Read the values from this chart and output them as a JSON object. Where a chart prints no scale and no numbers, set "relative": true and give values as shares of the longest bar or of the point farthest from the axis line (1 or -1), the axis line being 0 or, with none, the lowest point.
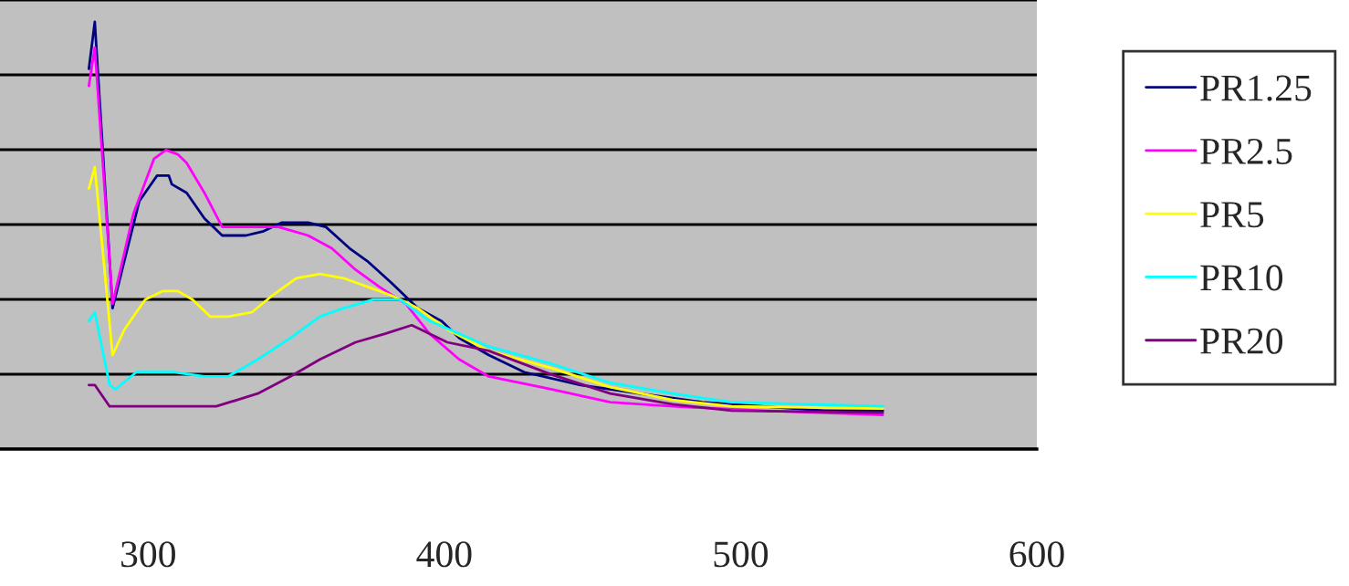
{
  "chart_data": {
    "type": "line",
    "relative": true,
    "xlim": [
      250,
      600
    ],
    "xticks": [
      300,
      400,
      500,
      600
    ],
    "grid": "y",
    "legend": "right",
    "line_style": "solid",
    "series": [
      {
        "name": "PR1.25",
        "color": "#000080",
        "x": [
          280,
          282,
          288,
          297,
          303,
          307,
          308,
          313,
          319,
          325,
          333,
          339,
          345,
          354,
          360,
          368,
          374,
          382,
          391,
          399,
          405,
          415,
          427,
          446,
          466,
          487,
          507,
          528,
          548
        ],
        "values": [
          0.89,
          1.0,
          0.33,
          0.58,
          0.64,
          0.64,
          0.62,
          0.6,
          0.54,
          0.5,
          0.5,
          0.51,
          0.53,
          0.53,
          0.52,
          0.47,
          0.44,
          0.39,
          0.33,
          0.3,
          0.26,
          0.22,
          0.18,
          0.15,
          0.13,
          0.11,
          0.1,
          0.09,
          0.09
        ]
      },
      {
        "name": "PR2.5",
        "color": "#ff00ff",
        "x": [
          280,
          282,
          288,
          295,
          302,
          306,
          310,
          313,
          319,
          325,
          333,
          344,
          354,
          362,
          370,
          378,
          387,
          395,
          405,
          415,
          436,
          456,
          477,
          507,
          548
        ],
        "values": [
          0.85,
          0.94,
          0.34,
          0.55,
          0.68,
          0.7,
          0.69,
          0.67,
          0.6,
          0.52,
          0.52,
          0.52,
          0.5,
          0.47,
          0.42,
          0.38,
          0.34,
          0.27,
          0.21,
          0.17,
          0.14,
          0.11,
          0.1,
          0.09,
          0.08
        ]
      },
      {
        "name": "PR5",
        "color": "#ffff00",
        "x": [
          280,
          282,
          288,
          292,
          299,
          305,
          310,
          315,
          321,
          327,
          335,
          342,
          350,
          358,
          366,
          374,
          382,
          391,
          401,
          415,
          436,
          456,
          477,
          497,
          548
        ],
        "values": [
          0.61,
          0.66,
          0.22,
          0.28,
          0.35,
          0.37,
          0.37,
          0.35,
          0.31,
          0.31,
          0.32,
          0.36,
          0.4,
          0.41,
          0.4,
          0.38,
          0.36,
          0.33,
          0.28,
          0.23,
          0.19,
          0.145,
          0.115,
          0.1,
          0.095
        ]
      },
      {
        "name": "PR10",
        "color": "#00ffff",
        "x": [
          280,
          282,
          287,
          289,
          296,
          309,
          319,
          327,
          337,
          348,
          358,
          366,
          376,
          385,
          395,
          405,
          415,
          436,
          456,
          477,
          497,
          548
        ],
        "values": [
          0.3,
          0.32,
          0.15,
          0.14,
          0.18,
          0.18,
          0.17,
          0.17,
          0.21,
          0.26,
          0.31,
          0.33,
          0.35,
          0.35,
          0.3,
          0.27,
          0.24,
          0.2,
          0.155,
          0.13,
          0.11,
          0.1
        ]
      },
      {
        "name": "PR20",
        "color": "#800080",
        "x": [
          280,
          282,
          287,
          303,
          323,
          337,
          348,
          358,
          370,
          380,
          389,
          401,
          415,
          436,
          456,
          477,
          497,
          548
        ],
        "values": [
          0.15,
          0.15,
          0.1,
          0.1,
          0.1,
          0.13,
          0.17,
          0.21,
          0.25,
          0.27,
          0.29,
          0.25,
          0.23,
          0.175,
          0.13,
          0.105,
          0.09,
          0.085
        ]
      }
    ]
  }
}
